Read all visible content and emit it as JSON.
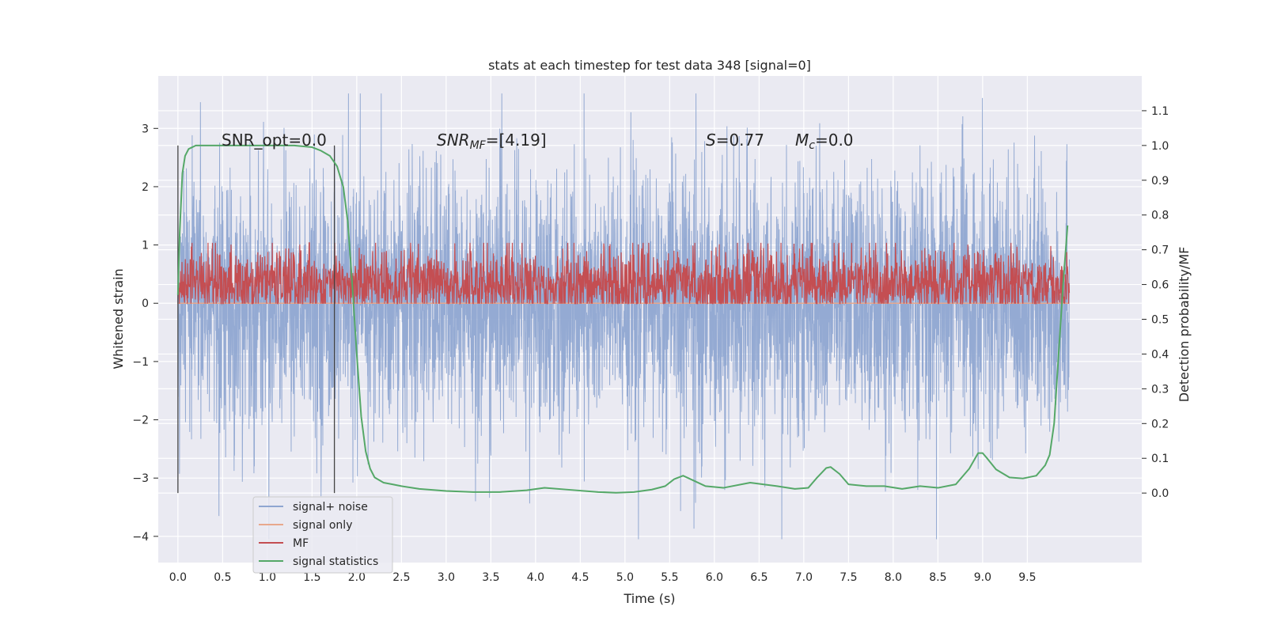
{
  "chart_data": {
    "type": "line",
    "title": "stats at each timestep for test data 348 [signal=0]",
    "xlabel": "Time (s)",
    "ylabel": "Whitened strain",
    "y2label": "Detection probability/MF",
    "xlim": [
      -0.22,
      10.78
    ],
    "ylim": [
      -4.45,
      3.9
    ],
    "y2lim": [
      -0.2,
      1.2
    ],
    "xticks": [
      "0.0",
      "0.5",
      "1.0",
      "1.5",
      "2.0",
      "2.5",
      "3.0",
      "3.5",
      "4.0",
      "4.5",
      "5.0",
      "5.5",
      "6.0",
      "6.5",
      "7.0",
      "7.5",
      "8.0",
      "8.5",
      "9.0",
      "9.5"
    ],
    "yticks": [
      "3",
      "2",
      "1",
      "0",
      "−1",
      "−2",
      "−3",
      "−4"
    ],
    "y2ticks": [
      "0.0",
      "0.1",
      "0.2",
      "0.3",
      "0.4",
      "0.5",
      "0.6",
      "0.7",
      "0.8",
      "0.9",
      "1.0",
      "1.1"
    ],
    "grid": true,
    "legend_position": "lower-left",
    "annotations": {
      "snr_opt": "SNR_opt=0.0",
      "snr_mf_base": "SNR",
      "snr_mf_sub": "MF",
      "snr_mf_rest": "=[4.19]",
      "s_sym": "S",
      "s_rest": "=0.77",
      "mc_base": "M",
      "mc_sub": "c",
      "mc_rest": "=0.0"
    },
    "vlines": [
      0.0,
      1.75
    ],
    "series": [
      {
        "name": "signal+ noise",
        "color": "#8fa6d1",
        "x_range": [
          0.0,
          9.97
        ],
        "noise_std": 1.1,
        "clip": [
          -4.05,
          3.6
        ]
      },
      {
        "name": "signal only",
        "color": "#e8a88c",
        "x_range": [
          0.0,
          9.97
        ],
        "constant": 0.0
      },
      {
        "name": "MF",
        "color": "#c44e52",
        "x_range": [
          0.0,
          9.97
        ],
        "base": 0.6,
        "noise_std": 0.05,
        "y_axis": "right"
      },
      {
        "name": "signal statistics",
        "color": "#55a868",
        "y_axis": "right",
        "x": [
          0.0,
          0.02,
          0.05,
          0.08,
          0.12,
          0.16,
          0.2,
          0.3,
          0.5,
          0.8,
          1.0,
          1.3,
          1.5,
          1.6,
          1.7,
          1.78,
          1.85,
          1.9,
          1.95,
          2.0,
          2.05,
          2.1,
          2.15,
          2.2,
          2.3,
          2.4,
          2.5,
          2.7,
          3.0,
          3.3,
          3.6,
          3.9,
          4.1,
          4.4,
          4.7,
          4.9,
          5.1,
          5.3,
          5.45,
          5.55,
          5.65,
          5.75,
          5.9,
          6.1,
          6.4,
          6.7,
          6.9,
          7.05,
          7.15,
          7.25,
          7.3,
          7.4,
          7.5,
          7.7,
          7.9,
          8.1,
          8.3,
          8.5,
          8.7,
          8.85,
          8.95,
          9.0,
          9.05,
          9.15,
          9.3,
          9.45,
          9.6,
          9.7,
          9.75,
          9.8,
          9.85,
          9.9,
          9.95
        ],
        "y": [
          0.57,
          0.75,
          0.92,
          0.97,
          0.99,
          0.995,
          1.0,
          1.0,
          1.0,
          1.0,
          1.0,
          1.0,
          0.995,
          0.985,
          0.97,
          0.94,
          0.88,
          0.78,
          0.6,
          0.4,
          0.22,
          0.12,
          0.07,
          0.045,
          0.03,
          0.025,
          0.02,
          0.012,
          0.006,
          0.003,
          0.003,
          0.008,
          0.015,
          0.009,
          0.003,
          0.001,
          0.003,
          0.01,
          0.02,
          0.04,
          0.05,
          0.038,
          0.02,
          0.015,
          0.03,
          0.02,
          0.012,
          0.015,
          0.045,
          0.072,
          0.075,
          0.055,
          0.025,
          0.02,
          0.02,
          0.012,
          0.02,
          0.015,
          0.025,
          0.07,
          0.115,
          0.115,
          0.1,
          0.068,
          0.045,
          0.042,
          0.05,
          0.08,
          0.11,
          0.2,
          0.4,
          0.6,
          0.77
        ]
      }
    ]
  }
}
